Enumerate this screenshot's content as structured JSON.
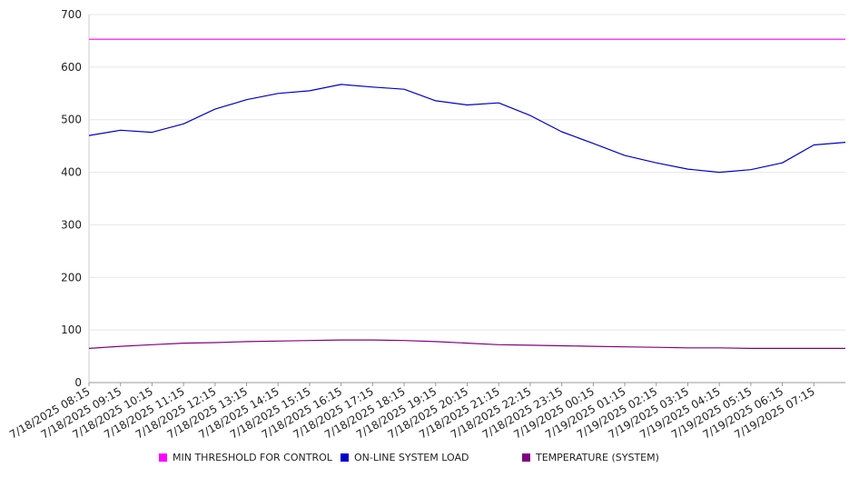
{
  "chart_data": {
    "type": "line",
    "title": "",
    "xlabel": "",
    "ylabel": "",
    "ylim": [
      0,
      700
    ],
    "y_ticks": [
      0,
      100,
      200,
      300,
      400,
      500,
      600,
      700
    ],
    "x_ticks": [
      "7/18/2025 08:15",
      "7/18/2025 09:15",
      "7/18/2025 10:15",
      "7/18/2025 11:15",
      "7/18/2025 12:15",
      "7/18/2025 13:15",
      "7/18/2025 14:15",
      "7/18/2025 15:15",
      "7/18/2025 16:15",
      "7/18/2025 17:15",
      "7/18/2025 18:15",
      "7/18/2025 19:15",
      "7/18/2025 20:15",
      "7/18/2025 21:15",
      "7/18/2025 22:15",
      "7/18/2025 23:15",
      "7/19/2025 00:15",
      "7/19/2025 01:15",
      "7/19/2025 02:15",
      "7/19/2025 03:15",
      "7/19/2025 04:15",
      "7/19/2025 05:15",
      "7/19/2025 06:15",
      "7/19/2025 07:15"
    ],
    "grid": true,
    "legend_position": "bottom",
    "series": [
      {
        "name": "MIN THRESHOLD FOR CONTROL",
        "color": "#ff00ff",
        "values": [
          653,
          653,
          653,
          653,
          653,
          653,
          653,
          653,
          653,
          653,
          653,
          653,
          653,
          653,
          653,
          653,
          653,
          653,
          653,
          653,
          653,
          653,
          653,
          653,
          653
        ]
      },
      {
        "name": "ON-LINE SYSTEM LOAD",
        "color": "#0000cc",
        "values": [
          470,
          480,
          476,
          492,
          520,
          538,
          550,
          555,
          567,
          562,
          558,
          536,
          528,
          532,
          508,
          477,
          455,
          432,
          418,
          406,
          400,
          405,
          418,
          452,
          457
        ]
      },
      {
        "name": "TEMPERATURE (SYSTEM)",
        "color": "#800080",
        "values": [
          65,
          69,
          72,
          75,
          76,
          78,
          79,
          80,
          81,
          81,
          80,
          78,
          75,
          72,
          71,
          70,
          69,
          68,
          67,
          66,
          66,
          65,
          65,
          65,
          65
        ]
      }
    ]
  }
}
